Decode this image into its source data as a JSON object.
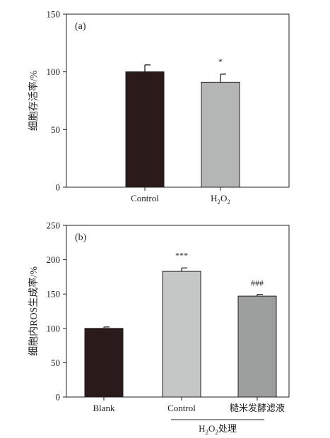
{
  "chart_data": [
    {
      "type": "bar",
      "panel_label": "(a)",
      "ylabel": "细胞存活率/%",
      "ylim": [
        0,
        150
      ],
      "yticks": [
        0,
        50,
        100,
        150
      ],
      "categories": [
        {
          "label": "Control",
          "sub": "",
          "after": ""
        },
        {
          "label": "H",
          "sub": "2",
          "after": "O",
          "sub2": "2"
        }
      ],
      "values": [
        100,
        91
      ],
      "errors": [
        6,
        7
      ],
      "annotations": [
        "",
        "*"
      ],
      "colors": [
        "#2a1a1a",
        "#b4b6b5"
      ],
      "grid": false
    },
    {
      "type": "bar",
      "panel_label": "(b)",
      "ylabel": "细胞内ROS生成率/%",
      "ylim": [
        0,
        250
      ],
      "yticks": [
        0,
        50,
        100,
        150,
        200,
        250
      ],
      "categories": [
        {
          "label": "Blank"
        },
        {
          "label": "Control"
        },
        {
          "label": "糙米发酵滤液"
        }
      ],
      "values": [
        100,
        183,
        147
      ],
      "errors": [
        2,
        5,
        2.5
      ],
      "annotations": [
        "",
        "***",
        "###"
      ],
      "colors": [
        "#2a1a1a",
        "#c5c7c6",
        "#9d9f9e"
      ],
      "group_label": {
        "main": "H",
        "sub": "2",
        "rest": "O",
        "sub2": "2",
        "tail": "处理"
      },
      "grid": false
    }
  ]
}
